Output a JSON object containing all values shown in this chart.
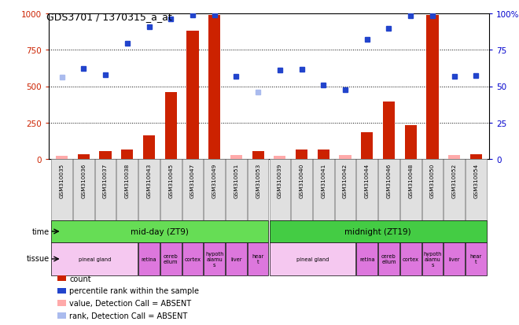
{
  "title": "GDS3701 / 1370315_a_at",
  "samples": [
    "GSM310035",
    "GSM310036",
    "GSM310037",
    "GSM310038",
    "GSM310043",
    "GSM310045",
    "GSM310047",
    "GSM310049",
    "GSM310051",
    "GSM310053",
    "GSM310039",
    "GSM310040",
    "GSM310041",
    "GSM310042",
    "GSM310044",
    "GSM310046",
    "GSM310048",
    "GSM310050",
    "GSM310052",
    "GSM310054"
  ],
  "count_values": [
    20,
    30,
    55,
    65,
    160,
    460,
    880,
    990,
    25,
    55,
    20,
    65,
    65,
    25,
    185,
    395,
    230,
    990,
    25,
    35
  ],
  "count_absent": [
    true,
    false,
    false,
    false,
    false,
    false,
    false,
    false,
    true,
    false,
    true,
    false,
    false,
    true,
    false,
    false,
    false,
    false,
    true,
    false
  ],
  "rank_values": [
    560,
    620,
    580,
    795,
    910,
    960,
    990,
    990,
    570,
    460,
    610,
    615,
    510,
    475,
    820,
    900,
    985,
    985,
    570,
    575
  ],
  "rank_absent": [
    true,
    false,
    false,
    false,
    false,
    false,
    false,
    false,
    false,
    true,
    false,
    false,
    false,
    false,
    false,
    false,
    false,
    false,
    false,
    false
  ],
  "time_groups": [
    {
      "label": "mid-day (ZT9)",
      "start": 0,
      "end": 9,
      "color": "#66dd55"
    },
    {
      "label": "midnight (ZT19)",
      "start": 10,
      "end": 19,
      "color": "#44cc44"
    }
  ],
  "tissue_groups": [
    {
      "label": "pineal gland",
      "start": 0,
      "end": 3,
      "color": "#f5c8f0"
    },
    {
      "label": "retina",
      "start": 4,
      "end": 4,
      "color": "#dd77dd"
    },
    {
      "label": "cereb\nellum",
      "start": 5,
      "end": 5,
      "color": "#dd77dd"
    },
    {
      "label": "cortex",
      "start": 6,
      "end": 6,
      "color": "#dd77dd"
    },
    {
      "label": "hypoth\nalamu\ns",
      "start": 7,
      "end": 7,
      "color": "#dd77dd"
    },
    {
      "label": "liver",
      "start": 8,
      "end": 8,
      "color": "#dd77dd"
    },
    {
      "label": "hear\nt",
      "start": 9,
      "end": 9,
      "color": "#dd77dd"
    },
    {
      "label": "pineal gland",
      "start": 10,
      "end": 13,
      "color": "#f5c8f0"
    },
    {
      "label": "retina",
      "start": 14,
      "end": 14,
      "color": "#dd77dd"
    },
    {
      "label": "cereb\nellum",
      "start": 15,
      "end": 15,
      "color": "#dd77dd"
    },
    {
      "label": "cortex",
      "start": 16,
      "end": 16,
      "color": "#dd77dd"
    },
    {
      "label": "hypoth\nalamu\ns",
      "start": 17,
      "end": 17,
      "color": "#dd77dd"
    },
    {
      "label": "liver",
      "start": 18,
      "end": 18,
      "color": "#dd77dd"
    },
    {
      "label": "hear\nt",
      "start": 19,
      "end": 19,
      "color": "#dd77dd"
    }
  ],
  "ylim": [
    0,
    1000
  ],
  "bar_color_present": "#cc2200",
  "bar_color_absent": "#ffaaaa",
  "rank_color_present": "#2244cc",
  "rank_color_absent": "#aabbee",
  "bar_width": 0.55
}
